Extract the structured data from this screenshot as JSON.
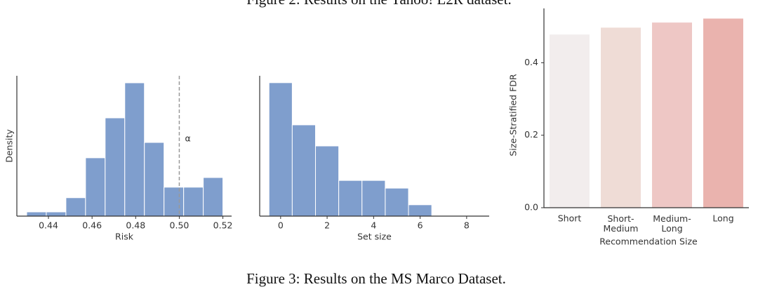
{
  "captions": {
    "top": "Figure 2: Results on the Yahoo! L2R dataset.",
    "bottom": "Figure 3: Results on the MS Marco Dataset."
  },
  "chart_data": [
    {
      "type": "histogram",
      "xlabel": "Risk",
      "ylabel": "Density",
      "bins": [
        0.43,
        0.439,
        0.448,
        0.457,
        0.466,
        0.475,
        0.484,
        0.493,
        0.502,
        0.511,
        0.52
      ],
      "values": [
        0.96,
        0.96,
        4.2,
        13.3,
        22.4,
        30.4,
        16.8,
        6.6,
        6.6,
        8.8
      ],
      "color": "#7f9ecd",
      "xlim": [
        0.4255,
        0.524
      ],
      "xticks": [
        0.44,
        0.46,
        0.48,
        {
          "value": 0.5,
          "label": "0.50"
        },
        0.52
      ],
      "ylim": [
        0,
        32
      ],
      "vline": 0.5,
      "vline_label": "α",
      "vline_color": "#999999"
    },
    {
      "type": "histogram",
      "xlabel": "Set size",
      "bins": [
        -0.5,
        0.5,
        1.5,
        2.5,
        3.5,
        4.5,
        5.5,
        6.5
      ],
      "values": [
        0.329,
        0.225,
        0.173,
        0.088,
        0.088,
        0.069,
        0.028
      ],
      "color": "#7f9ecd",
      "xlim": [
        -0.9,
        8.97
      ],
      "xticks": [
        0,
        2,
        4,
        6,
        8
      ],
      "ylim": [
        0,
        0.346
      ]
    },
    {
      "type": "bar",
      "xlabel": "Recommendation Size",
      "ylabel": "Size-Stratified FDR",
      "categories": [
        "Short",
        "Short-\nMedium",
        "Medium-\nLong",
        "Long"
      ],
      "values": [
        0.478,
        0.497,
        0.511,
        0.522
      ],
      "colors": [
        "#f2eded",
        "#efdcd6",
        "#eec7c5",
        "#eab3ae"
      ],
      "ylim": [
        0,
        0.55
      ],
      "yticks": [
        {
          "value": 0,
          "label": "0.0"
        },
        {
          "value": 0.2,
          "label": "0.2"
        },
        {
          "value": 0.4,
          "label": "0.4"
        }
      ]
    }
  ]
}
